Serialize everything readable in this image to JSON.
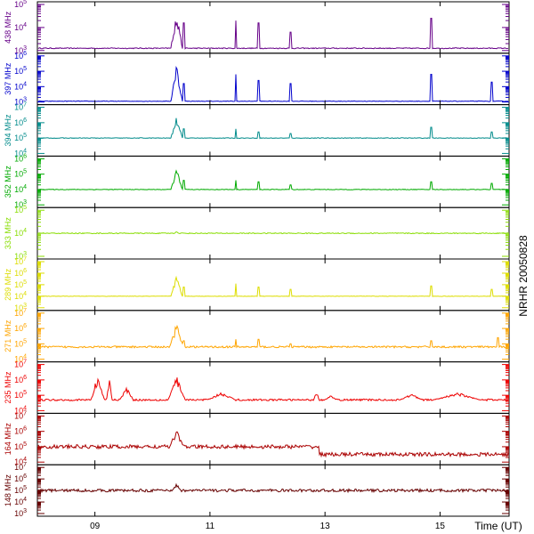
{
  "chart_data": {
    "type": "line",
    "title": "NRHR 20050828",
    "xlabel": "Time (UT)",
    "x_ticks": [
      "09",
      "11",
      "13",
      "15"
    ],
    "x_range_hours_ut": [
      8.0,
      16.2
    ],
    "y_scale": "log",
    "panels": [
      {
        "name": "438 MHz",
        "color": "#660088",
        "ylim_exp": [
          3,
          5
        ],
        "tick_exps": [
          3,
          4,
          5
        ],
        "baseline_exp": 3.1,
        "bursts": [
          {
            "t": 10.42,
            "peak_exp": 4.9,
            "dur": 0.1
          },
          {
            "t": 10.55,
            "peak_exp": 4.2,
            "dur": 0.01
          },
          {
            "t": 11.45,
            "peak_exp": 4.3,
            "dur": 0.01
          },
          {
            "t": 11.85,
            "peak_exp": 4.2,
            "dur": 0.01
          },
          {
            "t": 12.4,
            "peak_exp": 3.8,
            "dur": 0.01
          },
          {
            "t": 14.85,
            "peak_exp": 4.4,
            "dur": 0.01
          }
        ]
      },
      {
        "name": "397 MHz",
        "color": "#0000cc",
        "ylim_exp": [
          3,
          6
        ],
        "tick_exps": [
          3,
          4,
          5,
          6
        ],
        "baseline_exp": 3.05,
        "bursts": [
          {
            "t": 10.42,
            "peak_exp": 5.6,
            "dur": 0.1
          },
          {
            "t": 10.55,
            "peak_exp": 4.2,
            "dur": 0.01
          },
          {
            "t": 11.45,
            "peak_exp": 4.8,
            "dur": 0.01
          },
          {
            "t": 11.85,
            "peak_exp": 4.4,
            "dur": 0.01
          },
          {
            "t": 12.4,
            "peak_exp": 4.2,
            "dur": 0.01
          },
          {
            "t": 14.85,
            "peak_exp": 4.8,
            "dur": 0.01
          },
          {
            "t": 15.9,
            "peak_exp": 4.3,
            "dur": 0.01
          }
        ]
      },
      {
        "name": "394 MHz",
        "color": "#008b8b",
        "ylim_exp": [
          4,
          7
        ],
        "tick_exps": [
          4,
          5,
          6,
          7
        ],
        "baseline_exp": 5.0,
        "bursts": [
          {
            "t": 10.42,
            "peak_exp": 6.6,
            "dur": 0.1
          },
          {
            "t": 10.55,
            "peak_exp": 5.6,
            "dur": 0.01
          },
          {
            "t": 11.45,
            "peak_exp": 5.6,
            "dur": 0.01
          },
          {
            "t": 11.85,
            "peak_exp": 5.4,
            "dur": 0.01
          },
          {
            "t": 12.4,
            "peak_exp": 5.3,
            "dur": 0.01
          },
          {
            "t": 14.85,
            "peak_exp": 5.7,
            "dur": 0.01
          },
          {
            "t": 15.9,
            "peak_exp": 5.4,
            "dur": 0.01
          }
        ]
      },
      {
        "name": "352 MHz",
        "color": "#00aa00",
        "ylim_exp": [
          3,
          6
        ],
        "tick_exps": [
          3,
          4,
          5,
          6
        ],
        "baseline_exp": 4.0,
        "bursts": [
          {
            "t": 10.42,
            "peak_exp": 5.5,
            "dur": 0.1
          },
          {
            "t": 10.55,
            "peak_exp": 4.6,
            "dur": 0.01
          },
          {
            "t": 11.45,
            "peak_exp": 4.6,
            "dur": 0.01
          },
          {
            "t": 11.85,
            "peak_exp": 4.5,
            "dur": 0.01
          },
          {
            "t": 12.4,
            "peak_exp": 4.3,
            "dur": 0.01
          },
          {
            "t": 14.85,
            "peak_exp": 4.5,
            "dur": 0.01
          },
          {
            "t": 15.9,
            "peak_exp": 4.4,
            "dur": 0.01
          }
        ]
      },
      {
        "name": "333 MHz",
        "color": "#88dd00",
        "ylim_exp": [
          3,
          5
        ],
        "tick_exps": [
          3,
          4,
          5
        ],
        "baseline_exp": 4.0,
        "bursts": [
          {
            "t": 10.42,
            "peak_exp": 4.1,
            "dur": 0.03
          }
        ]
      },
      {
        "name": "289 MHz",
        "color": "#dddd00",
        "ylim_exp": [
          3,
          7
        ],
        "tick_exps": [
          3,
          4,
          5,
          6,
          7
        ],
        "baseline_exp": 4.0,
        "bursts": [
          {
            "t": 10.42,
            "peak_exp": 5.9,
            "dur": 0.1
          },
          {
            "t": 10.55,
            "peak_exp": 4.8,
            "dur": 0.01
          },
          {
            "t": 11.45,
            "peak_exp": 5.1,
            "dur": 0.01
          },
          {
            "t": 11.85,
            "peak_exp": 4.8,
            "dur": 0.01
          },
          {
            "t": 12.4,
            "peak_exp": 4.6,
            "dur": 0.01
          },
          {
            "t": 14.85,
            "peak_exp": 4.9,
            "dur": 0.01
          },
          {
            "t": 15.9,
            "peak_exp": 4.6,
            "dur": 0.01
          }
        ]
      },
      {
        "name": "271 MHz",
        "color": "#ffa500",
        "ylim_exp": [
          4,
          7
        ],
        "tick_exps": [
          4,
          5,
          6,
          7
        ],
        "baseline_exp": 4.8,
        "bursts": [
          {
            "t": 10.42,
            "peak_exp": 6.4,
            "dur": 0.12
          },
          {
            "t": 10.55,
            "peak_exp": 5.2,
            "dur": 0.01
          },
          {
            "t": 11.45,
            "peak_exp": 5.3,
            "dur": 0.01
          },
          {
            "t": 11.85,
            "peak_exp": 5.3,
            "dur": 0.01
          },
          {
            "t": 12.4,
            "peak_exp": 5.0,
            "dur": 0.01
          },
          {
            "t": 14.85,
            "peak_exp": 5.2,
            "dur": 0.01
          },
          {
            "t": 16.0,
            "peak_exp": 5.4,
            "dur": 0.01
          }
        ]
      },
      {
        "name": "235 MHz",
        "color": "#ee0000",
        "ylim_exp": [
          4,
          7
        ],
        "tick_exps": [
          4,
          5,
          6,
          7
        ],
        "baseline_exp": 4.7,
        "bursts": [
          {
            "t": 9.05,
            "peak_exp": 6.4,
            "dur": 0.12
          },
          {
            "t": 9.25,
            "peak_exp": 6.2,
            "dur": 0.05
          },
          {
            "t": 9.55,
            "peak_exp": 5.6,
            "dur": 0.12
          },
          {
            "t": 10.42,
            "peak_exp": 6.3,
            "dur": 0.15
          },
          {
            "t": 11.2,
            "peak_exp": 5.2,
            "dur": 0.25
          },
          {
            "t": 12.85,
            "peak_exp": 5.3,
            "dur": 0.05
          },
          {
            "t": 13.1,
            "peak_exp": 5.0,
            "dur": 0.1
          },
          {
            "t": 14.5,
            "peak_exp": 5.1,
            "dur": 0.2
          },
          {
            "t": 15.3,
            "peak_exp": 5.2,
            "dur": 0.4
          }
        ]
      },
      {
        "name": "164 MHz",
        "color": "#aa0000",
        "ylim_exp": [
          4,
          7
        ],
        "tick_exps": [
          4,
          5,
          6,
          7
        ],
        "baseline_exp": 5.0,
        "bursts": [
          {
            "t": 10.42,
            "peak_exp": 6.2,
            "dur": 0.12
          }
        ]
      },
      {
        "name": "148 MHz",
        "color": "#660000",
        "ylim_exp": [
          3,
          7
        ],
        "tick_exps": [
          3,
          4,
          5,
          6,
          7
        ],
        "baseline_exp": 5.0,
        "bursts": [
          {
            "t": 10.42,
            "peak_exp": 5.6,
            "dur": 0.08
          }
        ]
      }
    ]
  }
}
